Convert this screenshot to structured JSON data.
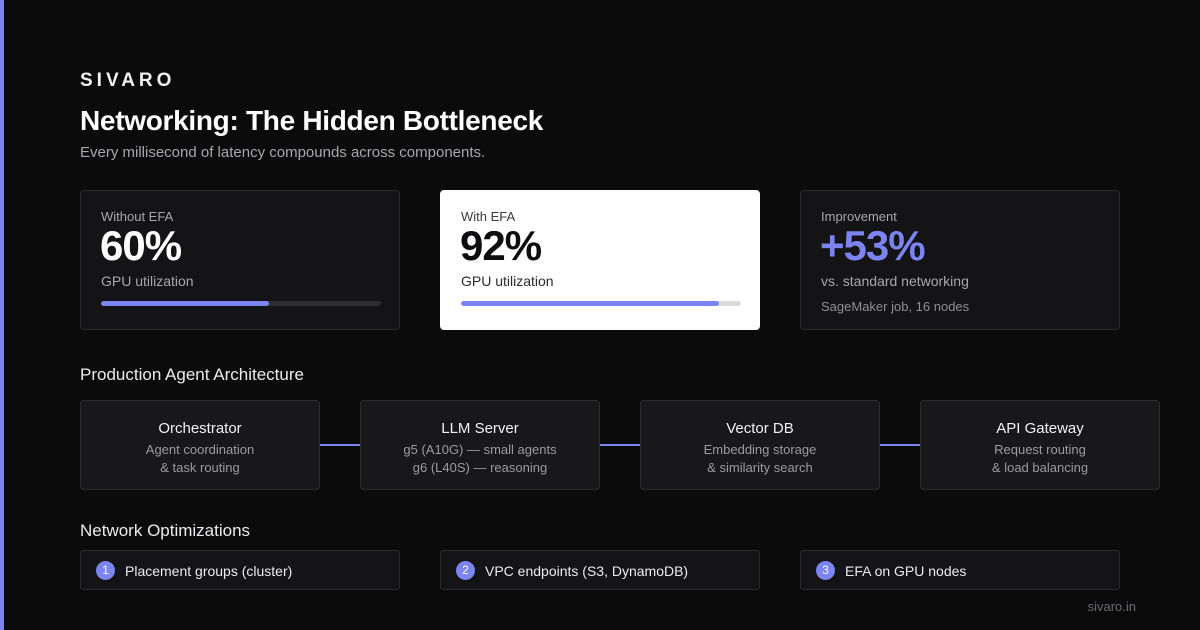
{
  "brand": "SIVARO",
  "title": "Networking: The Hidden Bottleneck",
  "subtitle": "Every millisecond of latency compounds across components.",
  "accent_color": "#7b84f0",
  "metrics": {
    "without": {
      "label": "Without EFA",
      "value": "60%",
      "caption": "GPU utilization",
      "progress_percent": 60
    },
    "with": {
      "label": "With EFA",
      "value": "92%",
      "caption": "GPU utilization",
      "progress_percent": 92
    },
    "improvement": {
      "label": "Improvement",
      "value": "+53%",
      "caption": "vs. standard networking",
      "note": "SageMaker job, 16 nodes"
    }
  },
  "architecture": {
    "title": "Production Agent Architecture",
    "components": [
      {
        "name": "Orchestrator",
        "line1": "Agent coordination",
        "line2": "& task routing"
      },
      {
        "name": "LLM Server",
        "line1": "g5 (A10G) — small agents",
        "line2": "g6 (L40S) — reasoning"
      },
      {
        "name": "Vector DB",
        "line1": "Embedding storage",
        "line2": "& similarity search"
      },
      {
        "name": "API Gateway",
        "line1": "Request routing",
        "line2": "& load balancing"
      }
    ]
  },
  "optimizations": {
    "title": "Network Optimizations",
    "items": [
      {
        "num": "1",
        "label": "Placement groups (cluster)"
      },
      {
        "num": "2",
        "label": "VPC endpoints (S3, DynamoDB)"
      },
      {
        "num": "3",
        "label": "EFA on GPU nodes"
      }
    ]
  },
  "footer": "sivaro.in"
}
